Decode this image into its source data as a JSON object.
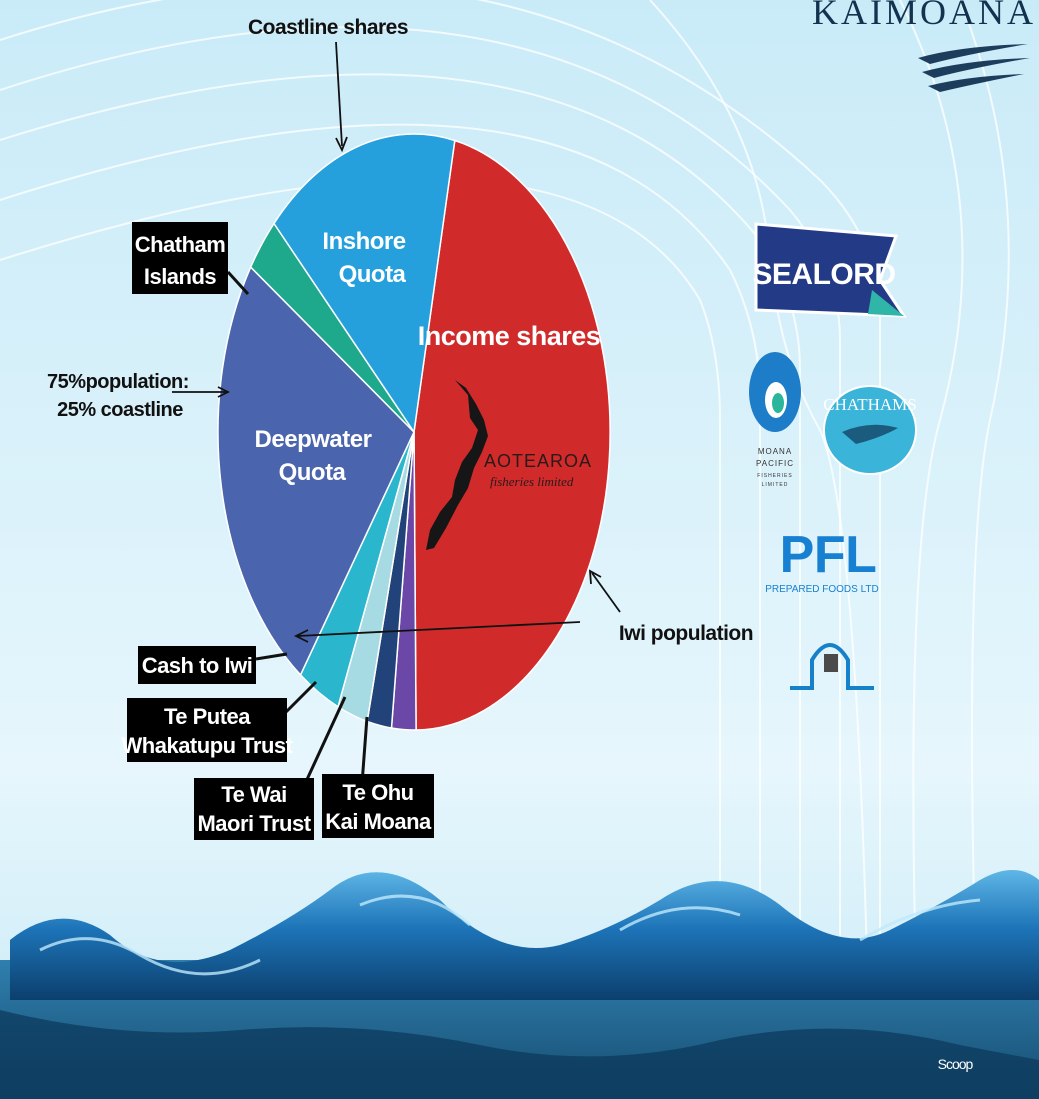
{
  "brand": {
    "name": "KAIMOANA"
  },
  "chart_data": {
    "type": "pie",
    "title": "",
    "slices": [
      {
        "label": "Income shares",
        "value": 46.5,
        "color": "#d02a2b"
      },
      {
        "label": "Te Ohu Kai Moana",
        "value": 2.0,
        "color": "#6b48a8"
      },
      {
        "label": "Te Wai Maori Trust",
        "value": 2.0,
        "color": "#22437a"
      },
      {
        "label": "Te Putea Whakatupu Trust",
        "value": 2.5,
        "color": "#a6dbe3"
      },
      {
        "label": "Cash to Iwi",
        "value": 3.5,
        "color": "#2ab6cd"
      },
      {
        "label": "Deepwater Quota",
        "value": 24.5,
        "color": "#4a64ae"
      },
      {
        "label": "Chatham Islands",
        "value": 3.0,
        "color": "#1fa98c"
      },
      {
        "label": "Inshore Quota",
        "value": 16.0,
        "color": "#26a0dc"
      }
    ],
    "slice_labels": {
      "income": "Income shares",
      "inshore": [
        "Inshore",
        "Quota"
      ],
      "deepwater": [
        "Deepwater",
        "Quota"
      ]
    },
    "callouts": {
      "chatham": [
        "Chatham",
        "Islands"
      ],
      "cash": "Cash to Iwi",
      "putea": [
        "Te Putea",
        "Whakatupu Trust"
      ],
      "tewai": [
        "Te Wai",
        "Maori Trust"
      ],
      "teohu": [
        "Te Ohu",
        "Kai Moana"
      ]
    },
    "annotations": {
      "coastline": "Coastline shares",
      "population": [
        "75%population:",
        "25% coastline"
      ],
      "iwi": "Iwi population"
    },
    "logo_text": {
      "line1": "AOTEAROA",
      "line2": "fisheries limited"
    }
  },
  "logos": {
    "sealord": "SEALORD",
    "chathams": "CHATHAMS",
    "moana": [
      "MOANA",
      "PACIFIC",
      "FISHERIES",
      "LIMITED"
    ],
    "pfl": "PFL",
    "pfl_sub": "PREPARED FOODS LTD"
  },
  "footer": {
    "watermark": "Scoop"
  },
  "colors": {
    "background": "#d4eef9",
    "arc_lines": "#ffffff",
    "callout_box": "#000000",
    "callout_text": "#ffffff"
  }
}
